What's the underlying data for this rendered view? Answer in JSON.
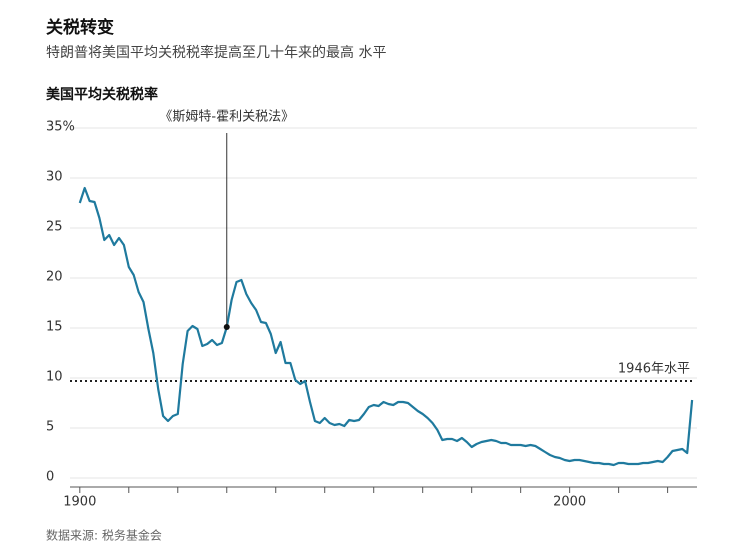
{
  "chart_data": {
    "type": "line",
    "title": "关税转变",
    "subtitle": "特朗普将美国平均关税税率提高至几十年来的最高 水平",
    "y_label": "美国平均关税税率",
    "source": "数据来源: 税务基金会",
    "x": [
      1900,
      1901,
      1902,
      1903,
      1904,
      1905,
      1906,
      1907,
      1908,
      1909,
      1910,
      1911,
      1912,
      1913,
      1914,
      1915,
      1916,
      1917,
      1918,
      1919,
      1920,
      1921,
      1922,
      1923,
      1924,
      1925,
      1926,
      1927,
      1928,
      1929,
      1930,
      1931,
      1932,
      1933,
      1934,
      1935,
      1936,
      1937,
      1938,
      1939,
      1940,
      1941,
      1942,
      1943,
      1944,
      1945,
      1946,
      1947,
      1948,
      1949,
      1950,
      1951,
      1952,
      1953,
      1954,
      1955,
      1956,
      1957,
      1958,
      1959,
      1960,
      1961,
      1962,
      1963,
      1964,
      1965,
      1966,
      1967,
      1968,
      1969,
      1970,
      1971,
      1972,
      1973,
      1974,
      1975,
      1976,
      1977,
      1978,
      1979,
      1980,
      1981,
      1982,
      1983,
      1984,
      1985,
      1986,
      1987,
      1988,
      1989,
      1990,
      1991,
      1992,
      1993,
      1994,
      1995,
      1996,
      1997,
      1998,
      1999,
      2000,
      2001,
      2002,
      2003,
      2004,
      2005,
      2006,
      2007,
      2008,
      2009,
      2010,
      2011,
      2012,
      2013,
      2014,
      2015,
      2016,
      2017,
      2018,
      2019,
      2020,
      2021,
      2022,
      2023,
      2024,
      2025
    ],
    "series": [
      {
        "name": "美国平均关税税率",
        "color": "#1f7a9e",
        "values": [
          27.5,
          29,
          27.7,
          27.6,
          26,
          23.8,
          24.3,
          23.3,
          24,
          23.3,
          21.1,
          20.3,
          18.6,
          17.6,
          14.9,
          12.5,
          8.9,
          6.2,
          5.7,
          6.2,
          6.4,
          11.4,
          14.7,
          15.2,
          14.9,
          13.2,
          13.4,
          13.8,
          13.3,
          13.5,
          15.1,
          17.8,
          19.6,
          19.8,
          18.4,
          17.5,
          16.8,
          15.6,
          15.5,
          14.4,
          12.5,
          13.6,
          11.5,
          11.5,
          9.8,
          9.4,
          9.7,
          7.6,
          5.7,
          5.5,
          6,
          5.5,
          5.3,
          5.4,
          5.2,
          5.8,
          5.7,
          5.8,
          6.4,
          7.1,
          7.3,
          7.2,
          7.6,
          7.4,
          7.3,
          7.6,
          7.6,
          7.5,
          7.1,
          6.7,
          6.4,
          6,
          5.5,
          4.8,
          3.8,
          3.9,
          3.9,
          3.7,
          4,
          3.6,
          3.1,
          3.4,
          3.6,
          3.7,
          3.8,
          3.7,
          3.5,
          3.5,
          3.3,
          3.3,
          3.3,
          3.2,
          3.3,
          3.2,
          2.9,
          2.6,
          2.3,
          2.1,
          2,
          1.8,
          1.7,
          1.8,
          1.8,
          1.7,
          1.6,
          1.5,
          1.5,
          1.4,
          1.4,
          1.3,
          1.5,
          1.5,
          1.4,
          1.4,
          1.4,
          1.5,
          1.5,
          1.6,
          1.7,
          1.6,
          2.1,
          2.7,
          2.8,
          2.9,
          2.5,
          7.8
        ]
      }
    ],
    "xlim": [
      1898,
      2026
    ],
    "xticks": [
      1900,
      2000
    ],
    "xminorticks": [
      1910,
      1920,
      1930,
      1940,
      1950,
      1960,
      1970,
      1980,
      1990,
      2010,
      2020
    ],
    "ylim": [
      0,
      35
    ],
    "yticks": [
      0,
      5,
      10,
      15,
      20,
      25,
      30,
      {
        "value": 35,
        "label": "35%"
      }
    ],
    "grid": true,
    "annotation": {
      "x": 1930,
      "text": "《斯姆特-霍利关税法》"
    },
    "reference_line": {
      "value": 9.7,
      "label": "1946年水平"
    }
  }
}
